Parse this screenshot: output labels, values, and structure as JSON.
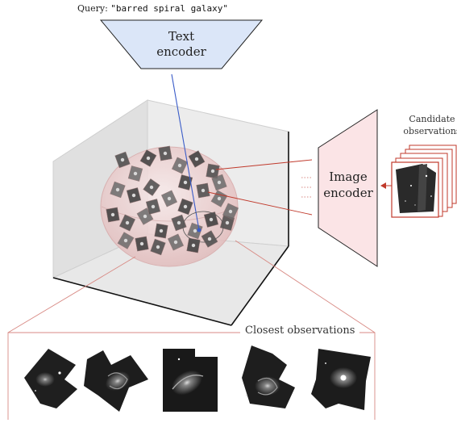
{
  "query": {
    "prefix": "Query:",
    "text": "\"barred spiral galaxy\""
  },
  "text_encoder": {
    "line1": "Text",
    "line2": "encoder",
    "fill": "#dbe6f8",
    "stroke": "#222222"
  },
  "image_encoder": {
    "line1": "Image",
    "line2": "encoder",
    "fill": "#fbe4e6",
    "stroke": "#222222"
  },
  "candidates": {
    "line1": "Candidate",
    "line2": "observations",
    "frame_color": "#c0392b"
  },
  "closest": {
    "label": "Closest observations",
    "frame_color": "#d88a84",
    "items": [
      {
        "name": "observation-1",
        "type": "galaxy-cutout"
      },
      {
        "name": "observation-2",
        "type": "spiral-galaxy-cutout"
      },
      {
        "name": "observation-3",
        "type": "barred-spiral-cutout"
      },
      {
        "name": "observation-4",
        "type": "spiral-galaxy-cutout"
      },
      {
        "name": "observation-5",
        "type": "elliptical-core-cutout"
      }
    ]
  },
  "colors": {
    "query_ray": "#3a5cc8",
    "embedding_link": "#c0392b",
    "sphere_fill": "#e9c9c9",
    "cube_faces": "#e6e6e6"
  }
}
